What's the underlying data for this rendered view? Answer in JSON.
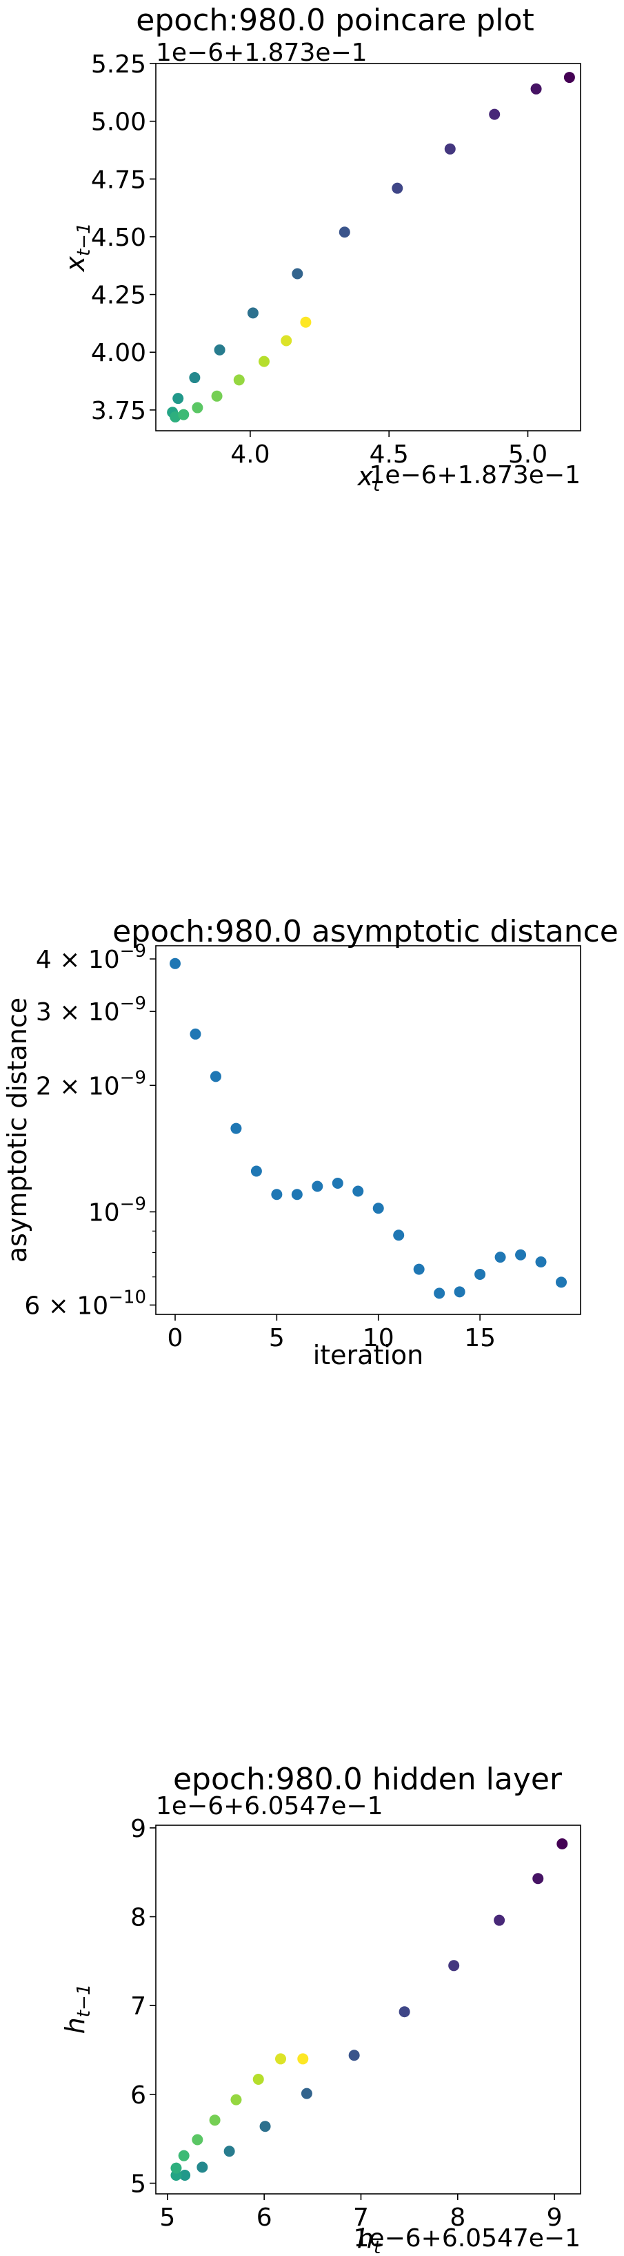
{
  "chart_data": [
    {
      "type": "scatter",
      "title": "epoch:980.0 poincare plot",
      "offset_label": "1e−6+1.873e−1",
      "xlabel": "x_t",
      "ylabel": "x_{t-1}",
      "xlim": [
        3.66,
        5.19
      ],
      "ylim": [
        3.66,
        5.25
      ],
      "xticks": [
        4.0,
        4.5,
        5.0
      ],
      "xtick_labels": [
        "4.0",
        "4.5",
        "5.0"
      ],
      "yticks": [
        3.75,
        4.0,
        4.25,
        4.5,
        4.75,
        5.0,
        5.25
      ],
      "ytick_labels": [
        "3.75",
        "4.00",
        "4.25",
        "4.50",
        "4.75",
        "5.00",
        "5.25"
      ],
      "colormap": "viridis",
      "points": [
        {
          "x": 5.15,
          "y": 5.19,
          "c": 0.0
        },
        {
          "x": 5.03,
          "y": 5.14,
          "c": 0.05
        },
        {
          "x": 4.88,
          "y": 5.03,
          "c": 0.11
        },
        {
          "x": 4.72,
          "y": 4.88,
          "c": 0.16
        },
        {
          "x": 4.53,
          "y": 4.71,
          "c": 0.21
        },
        {
          "x": 4.34,
          "y": 4.52,
          "c": 0.26
        },
        {
          "x": 4.17,
          "y": 4.34,
          "c": 0.32
        },
        {
          "x": 4.01,
          "y": 4.17,
          "c": 0.37
        },
        {
          "x": 3.89,
          "y": 4.01,
          "c": 0.42
        },
        {
          "x": 3.8,
          "y": 3.89,
          "c": 0.47
        },
        {
          "x": 3.74,
          "y": 3.8,
          "c": 0.53
        },
        {
          "x": 3.72,
          "y": 3.74,
          "c": 0.58
        },
        {
          "x": 3.73,
          "y": 3.72,
          "c": 0.63
        },
        {
          "x": 3.76,
          "y": 3.73,
          "c": 0.68
        },
        {
          "x": 3.81,
          "y": 3.76,
          "c": 0.74
        },
        {
          "x": 3.88,
          "y": 3.81,
          "c": 0.79
        },
        {
          "x": 3.96,
          "y": 3.88,
          "c": 0.84
        },
        {
          "x": 4.05,
          "y": 3.96,
          "c": 0.89
        },
        {
          "x": 4.13,
          "y": 4.05,
          "c": 0.95
        },
        {
          "x": 4.2,
          "y": 4.13,
          "c": 1.0
        }
      ]
    },
    {
      "type": "scatter",
      "title": "epoch:980.0 asymptotic distance",
      "xlabel": "iteration",
      "ylabel": "asymptotic distance",
      "yscale": "log",
      "xlim": [
        -0.95,
        19.95
      ],
      "ylim": [
        5.7e-10,
        4.3e-09
      ],
      "xticks": [
        0,
        5,
        10,
        15
      ],
      "xtick_labels": [
        "0",
        "5",
        "10",
        "15"
      ],
      "yticks": [
        6e-10,
        1e-09,
        2e-09,
        3e-09,
        4e-09
      ],
      "ytick_labels": [
        {
          "mant": "6",
          "exp": "−10"
        },
        {
          "mant": "",
          "exp": "−9"
        },
        {
          "mant": "2",
          "exp": "−9"
        },
        {
          "mant": "3",
          "exp": "−9"
        },
        {
          "mant": "4",
          "exp": "−9"
        }
      ],
      "minor_yticks": [
        7e-10,
        8e-10,
        9e-10
      ],
      "color": "#1f77b4",
      "x": [
        0,
        1,
        2,
        3,
        4,
        5,
        6,
        7,
        8,
        9,
        10,
        11,
        12,
        13,
        14,
        15,
        16,
        17,
        18,
        19
      ],
      "values": [
        3.9e-09,
        2.65e-09,
        2.1e-09,
        1.58e-09,
        1.25e-09,
        1.1e-09,
        1.1e-09,
        1.15e-09,
        1.17e-09,
        1.12e-09,
        1.02e-09,
        8.8e-10,
        7.3e-10,
        6.4e-10,
        6.45e-10,
        7.1e-10,
        7.8e-10,
        7.9e-10,
        7.6e-10,
        6.8e-10
      ]
    },
    {
      "type": "scatter",
      "title": "epoch:980.0 hidden layer",
      "offset_label": "1e−6+6.0547e−1",
      "xlabel": "h_t",
      "ylabel": "h_{t-1}",
      "xlim": [
        4.88,
        9.27
      ],
      "ylim": [
        4.88,
        9.03
      ],
      "xticks": [
        5,
        6,
        7,
        8,
        9
      ],
      "xtick_labels": [
        "5",
        "6",
        "7",
        "8",
        "9"
      ],
      "yticks": [
        5,
        6,
        7,
        8,
        9
      ],
      "ytick_labels": [
        "5",
        "6",
        "7",
        "8",
        "9"
      ],
      "colormap": "viridis",
      "points": [
        {
          "x": 9.08,
          "y": 8.82,
          "c": 0.0
        },
        {
          "x": 8.83,
          "y": 8.43,
          "c": 0.05
        },
        {
          "x": 8.43,
          "y": 7.96,
          "c": 0.11
        },
        {
          "x": 7.96,
          "y": 7.45,
          "c": 0.16
        },
        {
          "x": 7.45,
          "y": 6.93,
          "c": 0.21
        },
        {
          "x": 6.93,
          "y": 6.44,
          "c": 0.26
        },
        {
          "x": 6.44,
          "y": 6.01,
          "c": 0.32
        },
        {
          "x": 6.01,
          "y": 5.64,
          "c": 0.37
        },
        {
          "x": 5.64,
          "y": 5.36,
          "c": 0.42
        },
        {
          "x": 5.36,
          "y": 5.18,
          "c": 0.47
        },
        {
          "x": 5.18,
          "y": 5.09,
          "c": 0.53
        },
        {
          "x": 5.09,
          "y": 5.09,
          "c": 0.58
        },
        {
          "x": 5.09,
          "y": 5.17,
          "c": 0.63
        },
        {
          "x": 5.17,
          "y": 5.31,
          "c": 0.68
        },
        {
          "x": 5.31,
          "y": 5.49,
          "c": 0.74
        },
        {
          "x": 5.49,
          "y": 5.71,
          "c": 0.79
        },
        {
          "x": 5.71,
          "y": 5.94,
          "c": 0.84
        },
        {
          "x": 5.94,
          "y": 6.17,
          "c": 0.89
        },
        {
          "x": 6.17,
          "y": 6.4,
          "c": 0.95
        },
        {
          "x": 6.4,
          "y": 6.4,
          "c": 1.0
        }
      ]
    }
  ]
}
